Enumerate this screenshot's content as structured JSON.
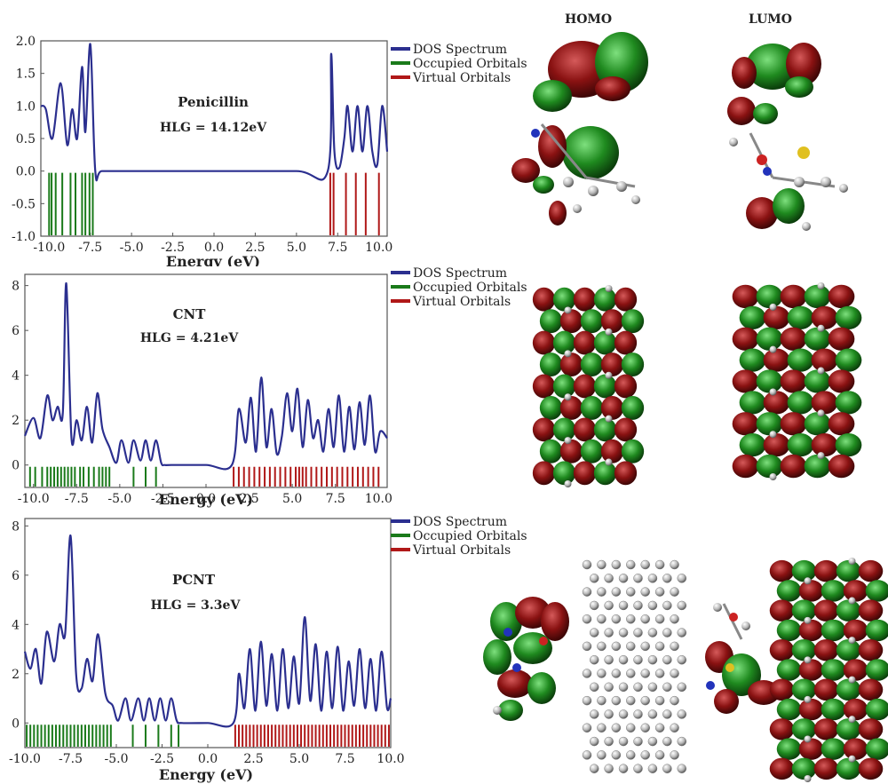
{
  "figure": {
    "headers": {
      "homo": "HOMO",
      "lumo": "LUMO"
    },
    "legend": [
      "DOS Spectrum",
      "Occupied Orbitals",
      "Virtual Orbitals"
    ],
    "colors": {
      "dos": "#2b2f8f",
      "occupied": "#1a7a1a",
      "virtual": "#b01818",
      "frame": "#555555",
      "text": "#222222"
    }
  },
  "chart_data": [
    {
      "type": "line",
      "title": "Penicillin",
      "annotation": "HLG = 14.12eV",
      "xlabel": "Energy (eV)",
      "xlim": [
        -10.5,
        10.5
      ],
      "ylim": [
        -1.0,
        2.0
      ],
      "xticks": [
        -10.0,
        -7.5,
        -5.0,
        -2.5,
        0.0,
        2.5,
        5.0,
        7.5,
        10.0
      ],
      "yticks": [
        2.0,
        1.5,
        1.0,
        0.5,
        0.0,
        -0.5,
        -1.0
      ],
      "series": [
        {
          "name": "DOS Spectrum",
          "x": [
            -10.5,
            -10.2,
            -9.8,
            -9.3,
            -8.9,
            -8.6,
            -8.3,
            -8.0,
            -7.8,
            -7.5,
            -7.2,
            -6.8,
            -5,
            0,
            5,
            6.9,
            7.1,
            7.3,
            7.6,
            7.9,
            8.1,
            8.4,
            8.7,
            9.0,
            9.3,
            9.6,
            9.9,
            10.2,
            10.5
          ],
          "y": [
            1.0,
            0.95,
            0.5,
            1.35,
            0.4,
            0.95,
            0.5,
            1.6,
            0.6,
            1.95,
            0.0,
            0.0,
            0.0,
            0.0,
            0.0,
            0.0,
            1.8,
            0.3,
            0.05,
            0.5,
            1.0,
            0.3,
            1.0,
            0.3,
            1.0,
            0.3,
            0.1,
            1.0,
            0.3
          ]
        }
      ],
      "occupied": [
        -10.0,
        -9.85,
        -9.6,
        -9.2,
        -8.7,
        -8.4,
        -8.0,
        -7.8,
        -7.55,
        -7.35
      ],
      "virtual": [
        7.05,
        7.25,
        8.0,
        8.6,
        9.2,
        10.0
      ]
    },
    {
      "type": "line",
      "title": "CNT",
      "annotation": "HLG = 4.21eV",
      "xlabel": "Energy (eV)",
      "xlim": [
        -10.5,
        10.5
      ],
      "ylim": [
        -1.0,
        8.5
      ],
      "xticks": [
        -10.0,
        -7.5,
        -5.0,
        -2.5,
        0.0,
        2.5,
        5.0,
        7.5,
        10.0
      ],
      "yticks": [
        8,
        6,
        4,
        2,
        0
      ],
      "series": [
        {
          "name": "DOS Spectrum",
          "x": [
            -10.5,
            -10.0,
            -9.6,
            -9.2,
            -8.9,
            -8.6,
            -8.3,
            -8.1,
            -7.8,
            -7.5,
            -7.2,
            -6.9,
            -6.6,
            -6.3,
            -6.0,
            -5.6,
            -5.2,
            -4.9,
            -4.5,
            -4.2,
            -3.8,
            -3.5,
            -3.2,
            -2.9,
            -2.6,
            -2.4,
            -2.0,
            0,
            1.5,
            1.9,
            2.3,
            2.6,
            2.9,
            3.2,
            3.5,
            3.8,
            4.1,
            4.4,
            4.7,
            5.0,
            5.3,
            5.6,
            5.9,
            6.2,
            6.5,
            6.8,
            7.1,
            7.4,
            7.7,
            8.0,
            8.3,
            8.6,
            8.9,
            9.2,
            9.5,
            9.8,
            10.1,
            10.5
          ],
          "y": [
            1.3,
            2.1,
            1.2,
            3.1,
            2.0,
            2.6,
            2.3,
            8.1,
            1.2,
            2.0,
            1.1,
            2.6,
            1.0,
            3.2,
            1.6,
            0.8,
            0.1,
            1.1,
            0.1,
            1.1,
            0.2,
            1.1,
            0.2,
            1.1,
            0.1,
            0.0,
            0.0,
            0.0,
            0.0,
            2.5,
            1.0,
            3.0,
            0.6,
            3.9,
            0.8,
            2.5,
            0.5,
            1.3,
            3.2,
            1.5,
            3.4,
            0.8,
            2.9,
            1.2,
            2.0,
            0.6,
            2.5,
            0.8,
            3.1,
            0.6,
            2.6,
            0.7,
            2.8,
            0.9,
            3.1,
            0.6,
            1.5,
            1.2
          ]
        }
      ],
      "occupied": [
        -10.2,
        -9.9,
        -9.5,
        -9.2,
        -9.0,
        -8.8,
        -8.6,
        -8.4,
        -8.2,
        -8.0,
        -7.8,
        -7.6,
        -7.3,
        -7.1,
        -6.8,
        -6.5,
        -6.2,
        -6.0,
        -5.8,
        -5.6,
        -4.2,
        -3.5,
        -2.9
      ],
      "virtual": [
        1.6,
        1.9,
        2.2,
        2.5,
        2.8,
        3.1,
        3.4,
        3.7,
        4.0,
        4.3,
        4.6,
        4.9,
        5.2,
        5.4,
        5.6,
        5.8,
        6.1,
        6.4,
        6.7,
        7.0,
        7.3,
        7.6,
        7.9,
        8.2,
        8.5,
        8.8,
        9.1,
        9.4,
        9.7,
        10.0
      ]
    },
    {
      "type": "line",
      "title": "PCNT",
      "annotation": "HLG = 3.3eV",
      "xlabel": "Energy (eV)",
      "xlim": [
        -10.0,
        10.0
      ],
      "ylim": [
        -1.0,
        8.3
      ],
      "xticks": [
        -10.0,
        -7.5,
        -5.0,
        -2.5,
        0.0,
        2.5,
        5.0,
        7.5,
        10.0
      ],
      "yticks": [
        8,
        6,
        4,
        2,
        0
      ],
      "series": [
        {
          "name": "DOS Spectrum",
          "x": [
            -10.0,
            -9.7,
            -9.4,
            -9.1,
            -8.8,
            -8.4,
            -8.1,
            -7.8,
            -7.5,
            -7.2,
            -6.9,
            -6.6,
            -6.3,
            -6.0,
            -5.6,
            -5.2,
            -4.9,
            -4.5,
            -4.2,
            -3.8,
            -3.5,
            -3.2,
            -2.9,
            -2.6,
            -2.3,
            -2.0,
            -1.7,
            -1.4,
            0,
            1.4,
            1.7,
            2.0,
            2.3,
            2.6,
            2.9,
            3.2,
            3.5,
            3.8,
            4.1,
            4.4,
            4.7,
            5.0,
            5.3,
            5.6,
            5.9,
            6.2,
            6.5,
            6.8,
            7.1,
            7.4,
            7.7,
            8.0,
            8.3,
            8.6,
            8.9,
            9.2,
            9.5,
            9.8,
            10.0
          ],
          "y": [
            2.9,
            2.2,
            3.0,
            1.6,
            3.7,
            2.5,
            4.0,
            3.6,
            7.6,
            2.0,
            1.4,
            2.6,
            1.7,
            3.6,
            1.2,
            0.7,
            0.1,
            1.0,
            0.1,
            1.0,
            0.1,
            1.0,
            0.1,
            1.0,
            0.1,
            1.0,
            0.1,
            0.0,
            0.0,
            0.0,
            2.0,
            0.6,
            3.0,
            0.5,
            3.3,
            0.7,
            2.8,
            0.5,
            3.0,
            0.6,
            2.7,
            0.8,
            4.3,
            0.9,
            3.2,
            0.5,
            2.9,
            0.6,
            3.1,
            0.5,
            2.5,
            0.7,
            3.0,
            0.6,
            2.6,
            0.5,
            2.9,
            0.6,
            1.0
          ]
        }
      ],
      "occupied": [
        -9.9,
        -9.7,
        -9.5,
        -9.3,
        -9.1,
        -8.9,
        -8.7,
        -8.5,
        -8.3,
        -8.1,
        -7.9,
        -7.7,
        -7.5,
        -7.3,
        -7.1,
        -6.9,
        -6.7,
        -6.5,
        -6.3,
        -6.1,
        -5.9,
        -5.7,
        -5.5,
        -5.3,
        -4.1,
        -3.4,
        -2.7,
        -2.0,
        -1.6
      ],
      "virtual": [
        1.5,
        1.7,
        1.9,
        2.1,
        2.3,
        2.5,
        2.7,
        2.9,
        3.1,
        3.3,
        3.5,
        3.7,
        3.9,
        4.1,
        4.3,
        4.5,
        4.7,
        4.9,
        5.1,
        5.3,
        5.5,
        5.7,
        5.9,
        6.1,
        6.3,
        6.5,
        6.7,
        6.9,
        7.1,
        7.3,
        7.5,
        7.7,
        7.9,
        8.1,
        8.3,
        8.5,
        8.7,
        8.9,
        9.1,
        9.3,
        9.5,
        9.7,
        9.9
      ]
    }
  ]
}
